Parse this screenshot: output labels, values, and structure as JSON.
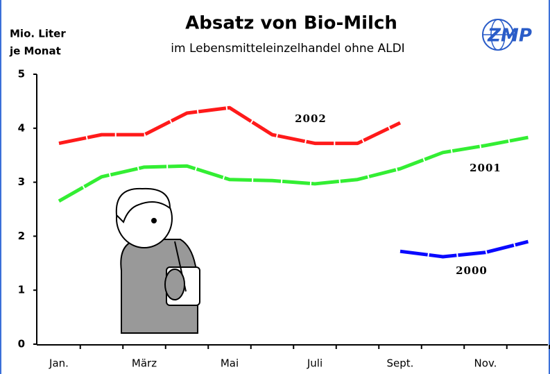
{
  "chart_data": {
    "type": "line",
    "title": "Absatz von Bio-Milch",
    "subtitle": "im Lebensmitteleinzelhandel ohne ALDI",
    "y_label": [
      "Mio. Liter",
      "je Monat"
    ],
    "logo": "ZMP",
    "categories": [
      "Jan.",
      null,
      "März",
      null,
      "Mai",
      null,
      "Juli",
      null,
      "Sept.",
      null,
      "Nov.",
      null
    ],
    "ylim": [
      0,
      5
    ],
    "yticks": [
      0,
      1,
      2,
      3,
      4,
      5
    ],
    "grid": false,
    "series": [
      {
        "name": "2002",
        "color": "#ff1a1a",
        "values": [
          3.72,
          3.88,
          3.88,
          4.28,
          4.38,
          3.88,
          3.72,
          3.72,
          4.1,
          null,
          null,
          null
        ]
      },
      {
        "name": "2001",
        "color": "#33ee33",
        "values": [
          2.65,
          3.1,
          3.28,
          3.3,
          3.05,
          3.03,
          2.97,
          3.05,
          3.25,
          3.55,
          3.68,
          3.83
        ]
      },
      {
        "name": "2000",
        "color": "#0a0aff",
        "values": [
          null,
          null,
          null,
          null,
          null,
          null,
          null,
          null,
          1.72,
          1.62,
          1.7,
          1.9
        ]
      }
    ]
  }
}
